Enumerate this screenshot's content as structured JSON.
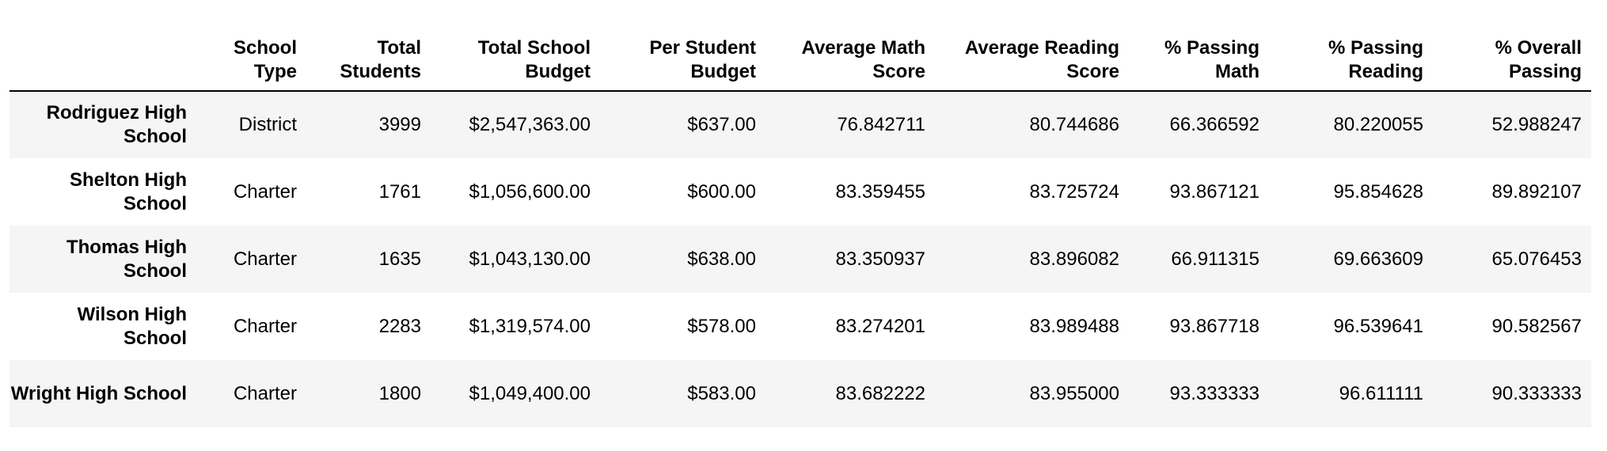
{
  "table": {
    "columns": [
      "",
      "School Type",
      "Total Students",
      "Total School Budget",
      "Per Student Budget",
      "Average Math Score",
      "Average Reading Score",
      "% Passing Math",
      "% Passing Reading",
      "% Overall Passing"
    ],
    "rows": [
      {
        "school": "Rodriguez High School",
        "cells": [
          "District",
          "3999",
          "$2,547,363.00",
          "$637.00",
          "76.842711",
          "80.744686",
          "66.366592",
          "80.220055",
          "52.988247"
        ]
      },
      {
        "school": "Shelton High School",
        "cells": [
          "Charter",
          "1761",
          "$1,056,600.00",
          "$600.00",
          "83.359455",
          "83.725724",
          "93.867121",
          "95.854628",
          "89.892107"
        ]
      },
      {
        "school": "Thomas High School",
        "cells": [
          "Charter",
          "1635",
          "$1,043,130.00",
          "$638.00",
          "83.350937",
          "83.896082",
          "66.911315",
          "69.663609",
          "65.076453"
        ]
      },
      {
        "school": "Wilson High School",
        "cells": [
          "Charter",
          "2283",
          "$1,319,574.00",
          "$578.00",
          "83.274201",
          "83.989488",
          "93.867718",
          "96.539641",
          "90.582567"
        ]
      },
      {
        "school": "Wright High School",
        "cells": [
          "Charter",
          "1800",
          "$1,049,400.00",
          "$583.00",
          "83.682222",
          "83.955000",
          "93.333333",
          "96.611111",
          "90.333333"
        ]
      }
    ]
  }
}
